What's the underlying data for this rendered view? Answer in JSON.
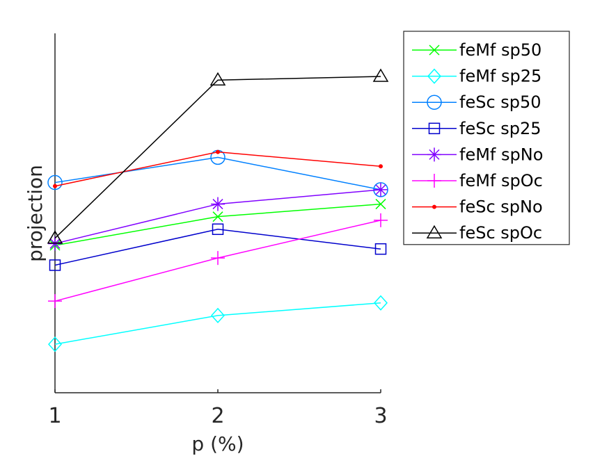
{
  "chart_data": {
    "type": "line",
    "xlabel": "p (%)",
    "ylabel": "projection",
    "x": [
      1,
      2,
      3
    ],
    "xlim": [
      1,
      3
    ],
    "ylim": [
      0,
      1
    ],
    "grid": false,
    "legend_position": "top-right-outside",
    "series": [
      {
        "name": "feMf sp50",
        "color": "#00ff00",
        "marker": "x",
        "values": [
          0.41,
          0.49,
          0.525
        ]
      },
      {
        "name": "feMf sp25",
        "color": "#00ffff",
        "marker": "diamond",
        "values": [
          0.135,
          0.215,
          0.25
        ]
      },
      {
        "name": "feSc sp50",
        "color": "#0080ff",
        "marker": "circle",
        "values": [
          0.585,
          0.655,
          0.565
        ]
      },
      {
        "name": "feSc sp25",
        "color": "#0000cc",
        "marker": "square",
        "values": [
          0.355,
          0.455,
          0.4
        ]
      },
      {
        "name": "feMf spNo",
        "color": "#8000ff",
        "marker": "asterisk",
        "values": [
          0.415,
          0.525,
          0.565
        ]
      },
      {
        "name": "feMf spOc",
        "color": "#ff00ff",
        "marker": "plus",
        "values": [
          0.255,
          0.375,
          0.48
        ]
      },
      {
        "name": "feSc spNo",
        "color": "#ff0000",
        "marker": "dot",
        "values": [
          0.575,
          0.67,
          0.63
        ]
      },
      {
        "name": "feSc spOc",
        "color": "#000000",
        "marker": "triangle",
        "values": [
          0.43,
          0.87,
          0.88
        ]
      }
    ]
  }
}
